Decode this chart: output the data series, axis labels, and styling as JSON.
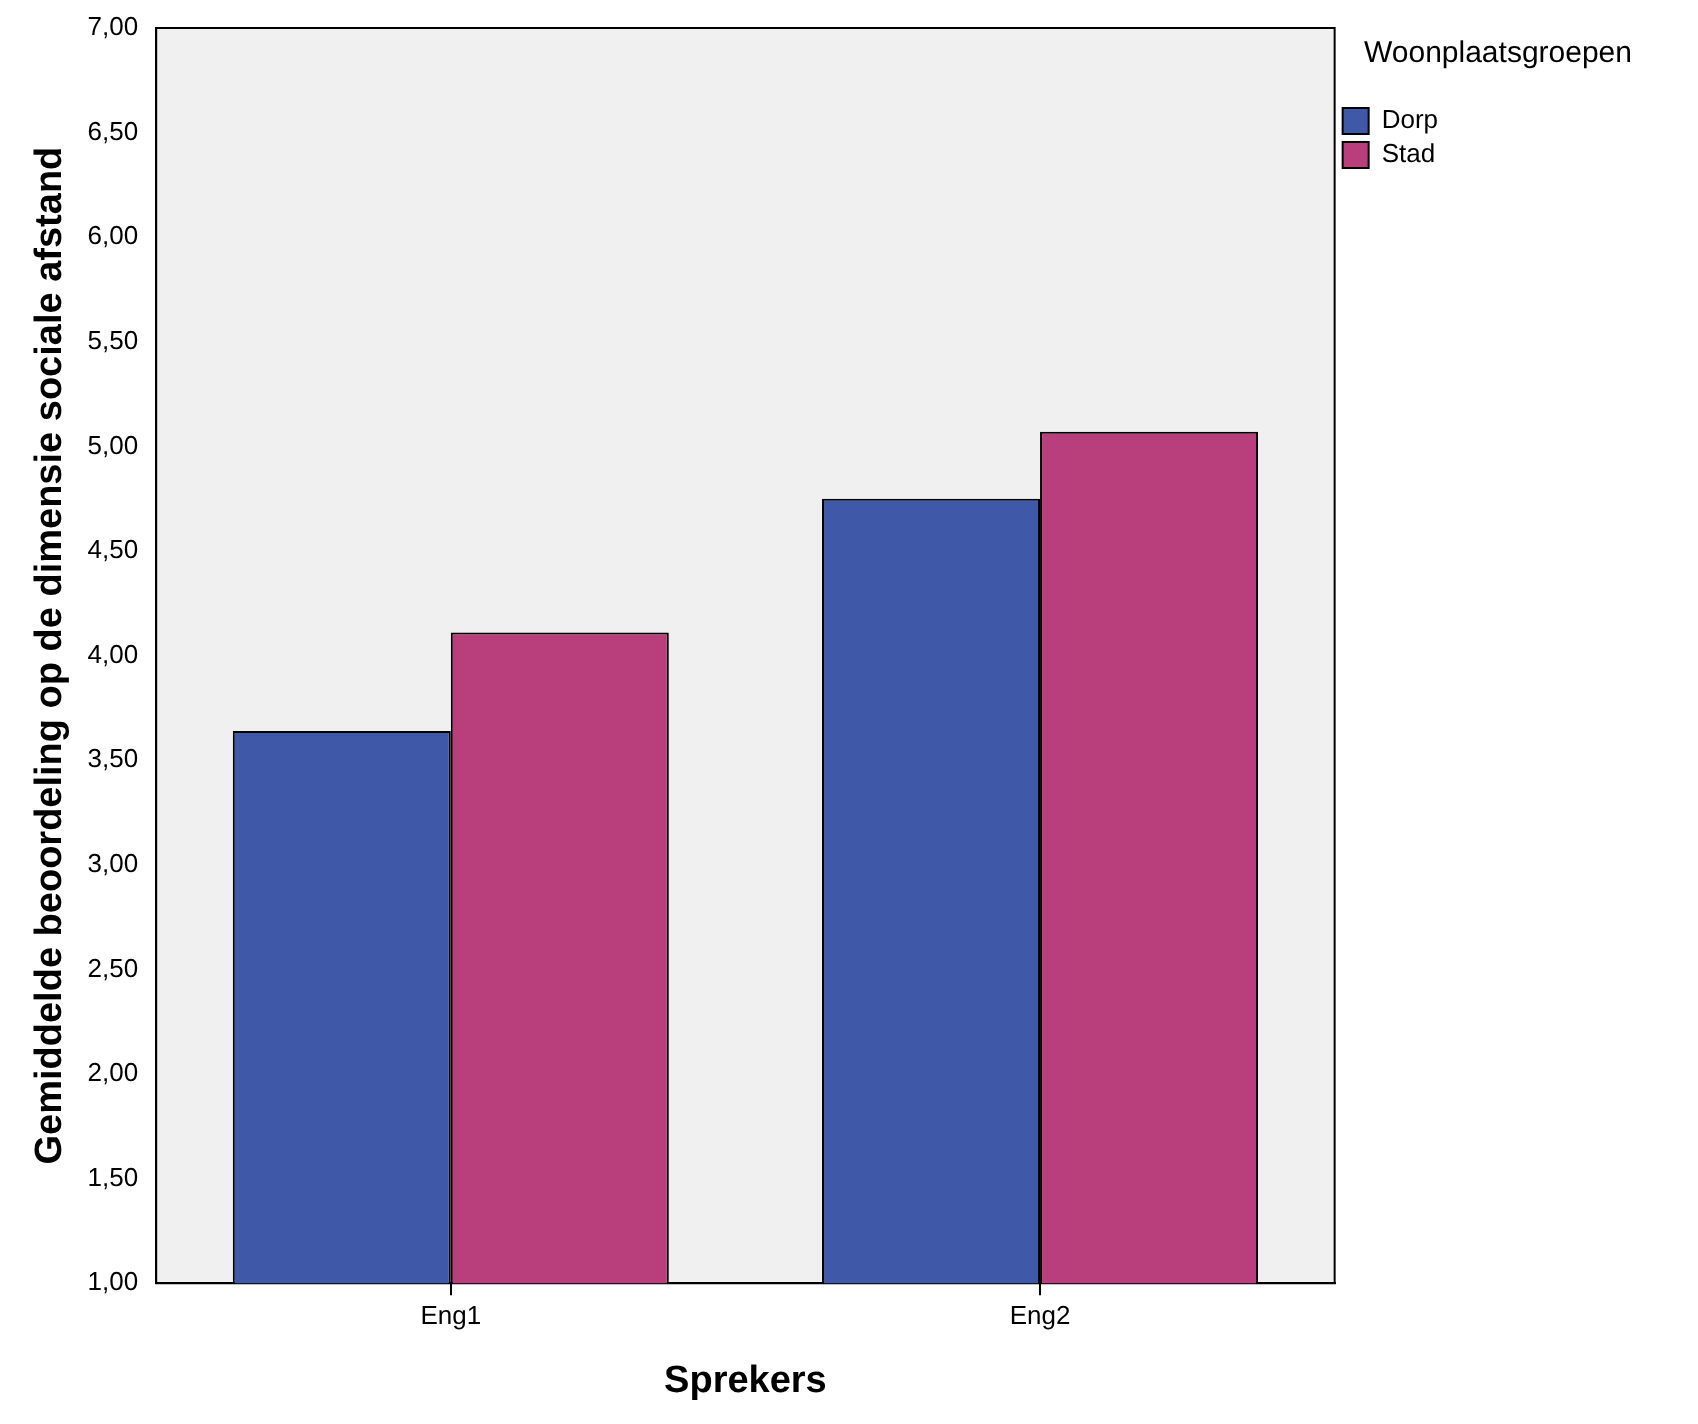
{
  "chart_data": {
    "type": "bar",
    "xlabel": "Sprekers",
    "ylabel": "Gemiddelde beoordeling op de dimensie sociale afstand",
    "legend_title": "Woonplaatsgroepen",
    "categories": [
      "Eng1",
      "Eng2"
    ],
    "series": [
      {
        "name": "Dorp",
        "color": "#3f58a8",
        "values": [
          3.64,
          4.75
        ]
      },
      {
        "name": "Stad",
        "color": "#b93f7c",
        "values": [
          4.11,
          5.07
        ]
      }
    ],
    "ylim": [
      1,
      7
    ],
    "yticks": [
      {
        "value": 1,
        "label": "1,00"
      },
      {
        "value": 1.5,
        "label": "1,50"
      },
      {
        "value": 2,
        "label": "2,00"
      },
      {
        "value": 2.5,
        "label": "2,50"
      },
      {
        "value": 3,
        "label": "3,00"
      },
      {
        "value": 3.5,
        "label": "3,50"
      },
      {
        "value": 4,
        "label": "4,00"
      },
      {
        "value": 4.5,
        "label": "4,50"
      },
      {
        "value": 5,
        "label": "5,00"
      },
      {
        "value": 5.5,
        "label": "5,50"
      },
      {
        "value": 6,
        "label": "6,00"
      },
      {
        "value": 6.5,
        "label": "6,50"
      },
      {
        "value": 7,
        "label": "7,00"
      }
    ],
    "grid": false,
    "legend": "top right"
  }
}
